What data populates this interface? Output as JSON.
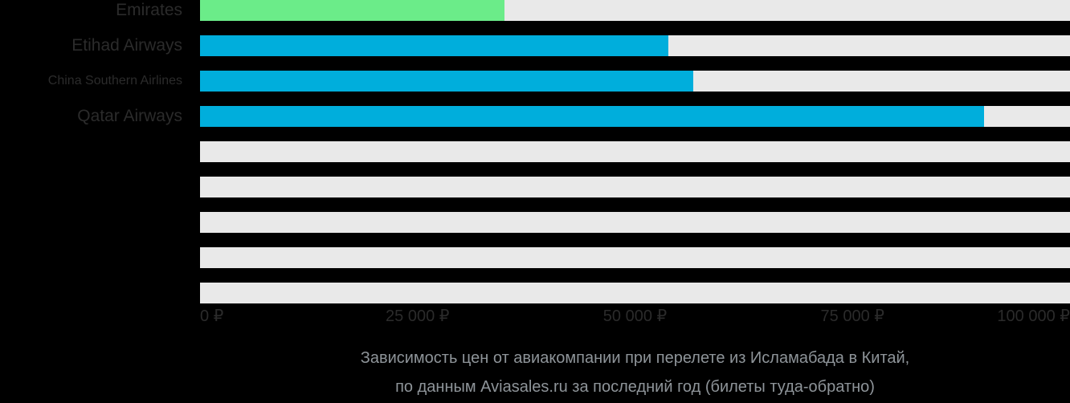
{
  "chart_data": {
    "type": "bar",
    "orientation": "horizontal",
    "title": "Зависимость цен от авиакомпании при перелете из Исламабада в Китай,",
    "subtitle": "по данным Aviasales.ru за последний год (билеты туда-обратно)",
    "xlabel": "",
    "ylabel": "",
    "xlim": [
      0,
      100000
    ],
    "grid": false,
    "legend": false,
    "x_ticks": [
      {
        "value": 0,
        "label": "0 ₽"
      },
      {
        "value": 25000,
        "label": "25 000 ₽"
      },
      {
        "value": 50000,
        "label": "50 000 ₽"
      },
      {
        "value": 75000,
        "label": "75 000 ₽"
      },
      {
        "value": 100000,
        "label": "100 000 ₽"
      }
    ],
    "categories": [
      "Emirates",
      "Etihad Airways",
      "China Southern Airlines",
      "Qatar Airways",
      "",
      "",
      "",
      "",
      ""
    ],
    "values": [
      35000,
      53800,
      56700,
      90100,
      0,
      0,
      0,
      0,
      0
    ],
    "bar_colors": [
      "#6BEC89",
      "#00AEDC",
      "#00AEDC",
      "#00AEDC",
      null,
      null,
      null,
      null,
      null
    ]
  },
  "colors": {
    "background": "#000000",
    "bar_green": "#6BEC89",
    "bar_cyan": "#00AEDC",
    "track": "#E9E9E9",
    "category_label": "#2B2B2B",
    "axis_label": "#2B2B2B",
    "title_text": "#8E9499"
  }
}
